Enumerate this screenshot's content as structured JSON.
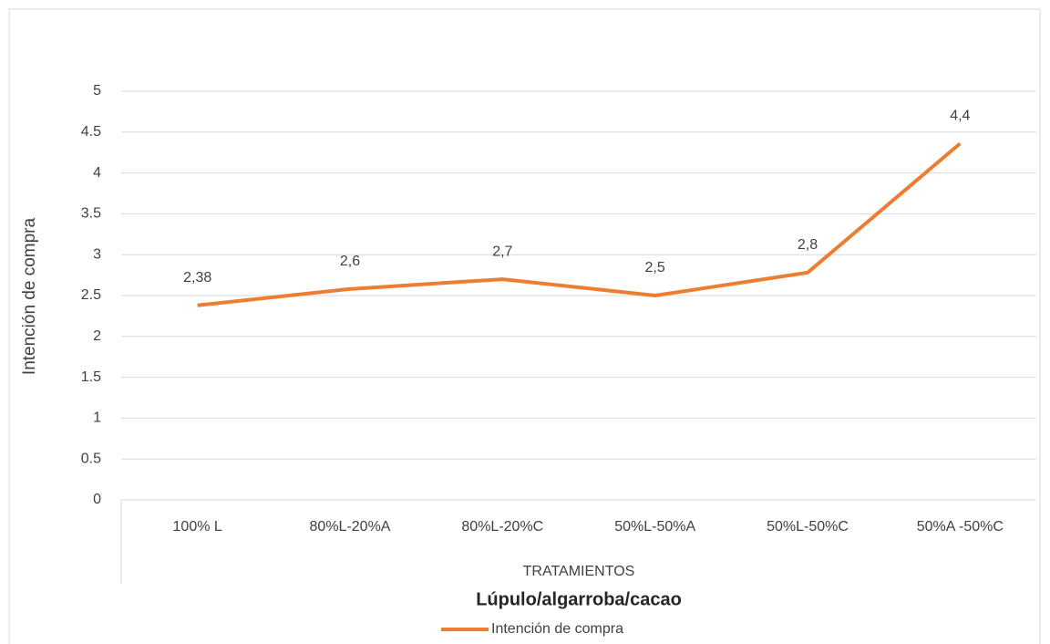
{
  "chart_data": {
    "type": "line",
    "title": "Lúpulo/algarroba/cacao",
    "x_label": "TRATAMIENTOS",
    "y_label": "Intención de compra",
    "categories": [
      "100% L",
      "80%L-20%A",
      "80%L-20%C",
      "50%L-50%A",
      "50%L-50%C",
      "50%A -50%C"
    ],
    "series": [
      {
        "name": "Intención de compra",
        "color": "#ed7d31",
        "values": [
          2.38,
          2.58,
          2.7,
          2.5,
          2.78,
          4.36
        ],
        "value_labels": [
          "2,38",
          "2,6",
          "2,7",
          "2,5",
          "2,8",
          "4,4"
        ]
      }
    ],
    "ylim": [
      0,
      5
    ],
    "yticks": [
      0,
      0.5,
      1,
      1.5,
      2,
      2.5,
      3,
      3.5,
      4,
      4.5,
      5
    ],
    "grid": true,
    "legend": "bottom"
  }
}
